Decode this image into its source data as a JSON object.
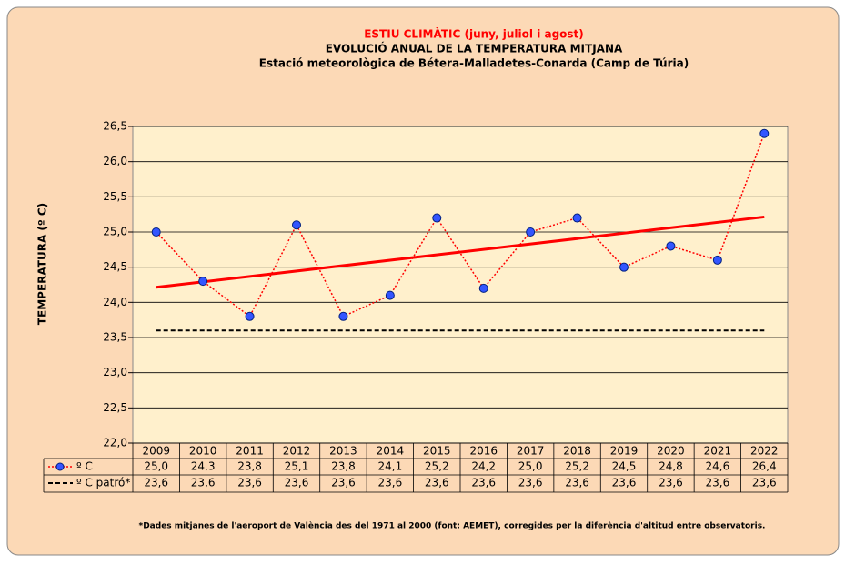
{
  "chart_data": {
    "type": "line",
    "title": "ESTIU CLIMÀTIC (juny, juliol i agost)",
    "subtitle": "EVOLUCIÓ ANUAL DE LA TEMPERATURA MITJANA",
    "station": "Estació meteorològica de Bétera-Malladetes-Conarda (Camp de Túria)",
    "y_label": "TEMPERATURA (º C)",
    "footnote": "*Dades mitjanes de l'aeroport de València des del 1971 al 2000 (font: AEMET), corregides per la diferència d'altitud entre observatoris.",
    "categories": [
      "2009",
      "2010",
      "2011",
      "2012",
      "2013",
      "2014",
      "2015",
      "2016",
      "2017",
      "2018",
      "2019",
      "2020",
      "2021",
      "2022"
    ],
    "series": [
      {
        "name": "º C",
        "color": "#ff0000",
        "marker_color": "#3355ff",
        "trendline": true,
        "values": [
          25.0,
          24.3,
          23.8,
          25.1,
          23.8,
          24.1,
          25.2,
          24.2,
          25.0,
          25.2,
          24.5,
          24.8,
          24.6,
          26.4
        ],
        "value_labels": [
          "25,0",
          "24,3",
          "23,8",
          "25,1",
          "23,8",
          "24,1",
          "25,2",
          "24,2",
          "25,0",
          "25,2",
          "24,5",
          "24,8",
          "24,6",
          "26,4"
        ]
      },
      {
        "name": "º C patró*",
        "color": "#000000",
        "dashed": true,
        "values": [
          23.6,
          23.6,
          23.6,
          23.6,
          23.6,
          23.6,
          23.6,
          23.6,
          23.6,
          23.6,
          23.6,
          23.6,
          23.6,
          23.6
        ],
        "value_labels": [
          "23,6",
          "23,6",
          "23,6",
          "23,6",
          "23,6",
          "23,6",
          "23,6",
          "23,6",
          "23,6",
          "23,6",
          "23,6",
          "23,6",
          "23,6",
          "23,6"
        ]
      }
    ],
    "ylim": [
      22,
      26.5
    ],
    "yticks": [
      {
        "value": 22,
        "label": "22,0"
      },
      {
        "value": 22.5,
        "label": "22,5"
      },
      {
        "value": 23,
        "label": "23,0"
      },
      {
        "value": 23.5,
        "label": "23,5"
      },
      {
        "value": 24,
        "label": "24,0"
      },
      {
        "value": 24.5,
        "label": "24,5"
      },
      {
        "value": 25,
        "label": "25,0"
      },
      {
        "value": 25.5,
        "label": "25,5"
      },
      {
        "value": 26,
        "label": "26,0"
      },
      {
        "value": 26.5,
        "label": "26,5"
      }
    ],
    "grid": true
  }
}
